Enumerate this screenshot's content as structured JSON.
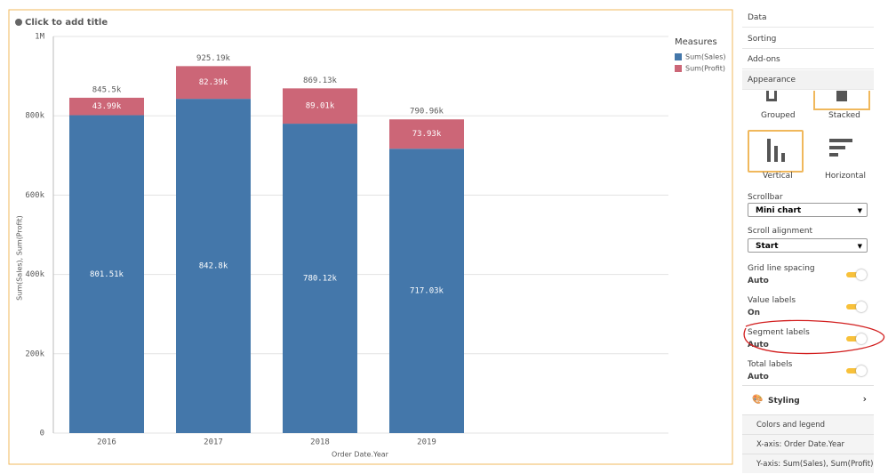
{
  "chart_data": {
    "type": "bar",
    "stacked": true,
    "title": "Click to add title",
    "x_label": "Order Date.Year",
    "y_label": "Sum(Sales), Sum(Profit)",
    "legend_title": "Measures",
    "categories": [
      "2016",
      "2017",
      "2018",
      "2019"
    ],
    "series": [
      {
        "name": "Sum(Sales)",
        "color": "#4477aa",
        "values": [
          801510,
          842800,
          780120,
          717030
        ],
        "value_labels": [
          "801.51k",
          "842.8k",
          "780.12k",
          "717.03k"
        ]
      },
      {
        "name": "Sum(Profit)",
        "color": "#cc6677",
        "values": [
          43990,
          82390,
          89010,
          73930
        ],
        "value_labels": [
          "43.99k",
          "82.39k",
          "89.01k",
          "73.93k"
        ]
      }
    ],
    "totals": {
      "values": [
        845500,
        925190,
        869130,
        790960
      ],
      "value_labels": [
        "845.5k",
        "925.19k",
        "869.13k",
        "790.96k"
      ]
    },
    "ylim": [
      0,
      1000000
    ],
    "yticks": [
      0,
      {
        "value": 200000,
        "label": "200k"
      },
      {
        "value": 400000,
        "label": "400k"
      },
      {
        "value": 600000,
        "label": "600k"
      },
      {
        "value": 800000,
        "label": "800k"
      },
      {
        "value": 1000000,
        "label": "1M"
      }
    ],
    "grid": true
  },
  "panel": {
    "tabs": [
      "Data",
      "Sorting",
      "Add-ons",
      "Appearance"
    ],
    "presentation": [
      "Grouped",
      "Stacked"
    ],
    "direction": [
      "Vertical",
      "Horizontal"
    ],
    "settings": [
      {
        "label": "Scrollbar",
        "value": "Mini chart"
      },
      {
        "label": "Scroll alignment",
        "value": "Start"
      }
    ],
    "toggles": [
      {
        "label": "Grid line spacing",
        "value": "Auto"
      },
      {
        "label": "Value labels",
        "value": "On"
      },
      {
        "label": "Segment labels",
        "value": "Auto"
      },
      {
        "label": "Total labels",
        "value": "Auto"
      }
    ],
    "styling": "Styling",
    "sections": [
      "Colors and legend",
      "X-axis: Order Date.Year",
      "Y-axis: Sum(Sales), Sum(Profit)"
    ]
  }
}
